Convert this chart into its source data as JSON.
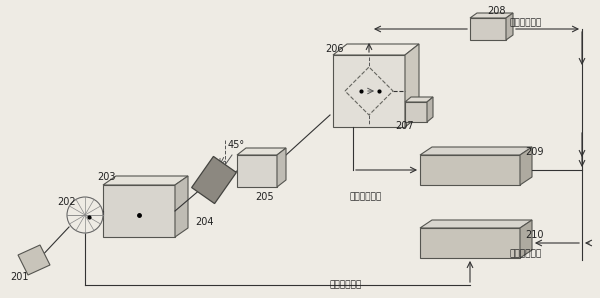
{
  "bg_color": "#eeebe4",
  "face_light": "#dedad2",
  "face_mid": "#c8c4ba",
  "face_dark": "#b0aba0",
  "face_top": "#e8e5de",
  "face_cube_front": "#e2dfd8",
  "face_cube_top": "#eeebe5",
  "face_cube_right": "#ccc8be",
  "face_flat_front": "#ccc8be",
  "face_flat_top": "#dedad4",
  "face_flat_right": "#b8b4aa",
  "edge_color": "#555550",
  "line_color": "#333333",
  "label_201": "201",
  "label_202": "202",
  "label_203": "203",
  "label_204": "204",
  "label_205": "205",
  "label_206": "206",
  "label_207": "207",
  "label_208": "208",
  "label_209": "209",
  "label_210": "210",
  "text_45": "45°",
  "text_ref1": "参考信号输入",
  "text_ref2": "参考信号输入",
  "text_sig1": "待测信号输入",
  "text_sig2": "待测信号输内"
}
